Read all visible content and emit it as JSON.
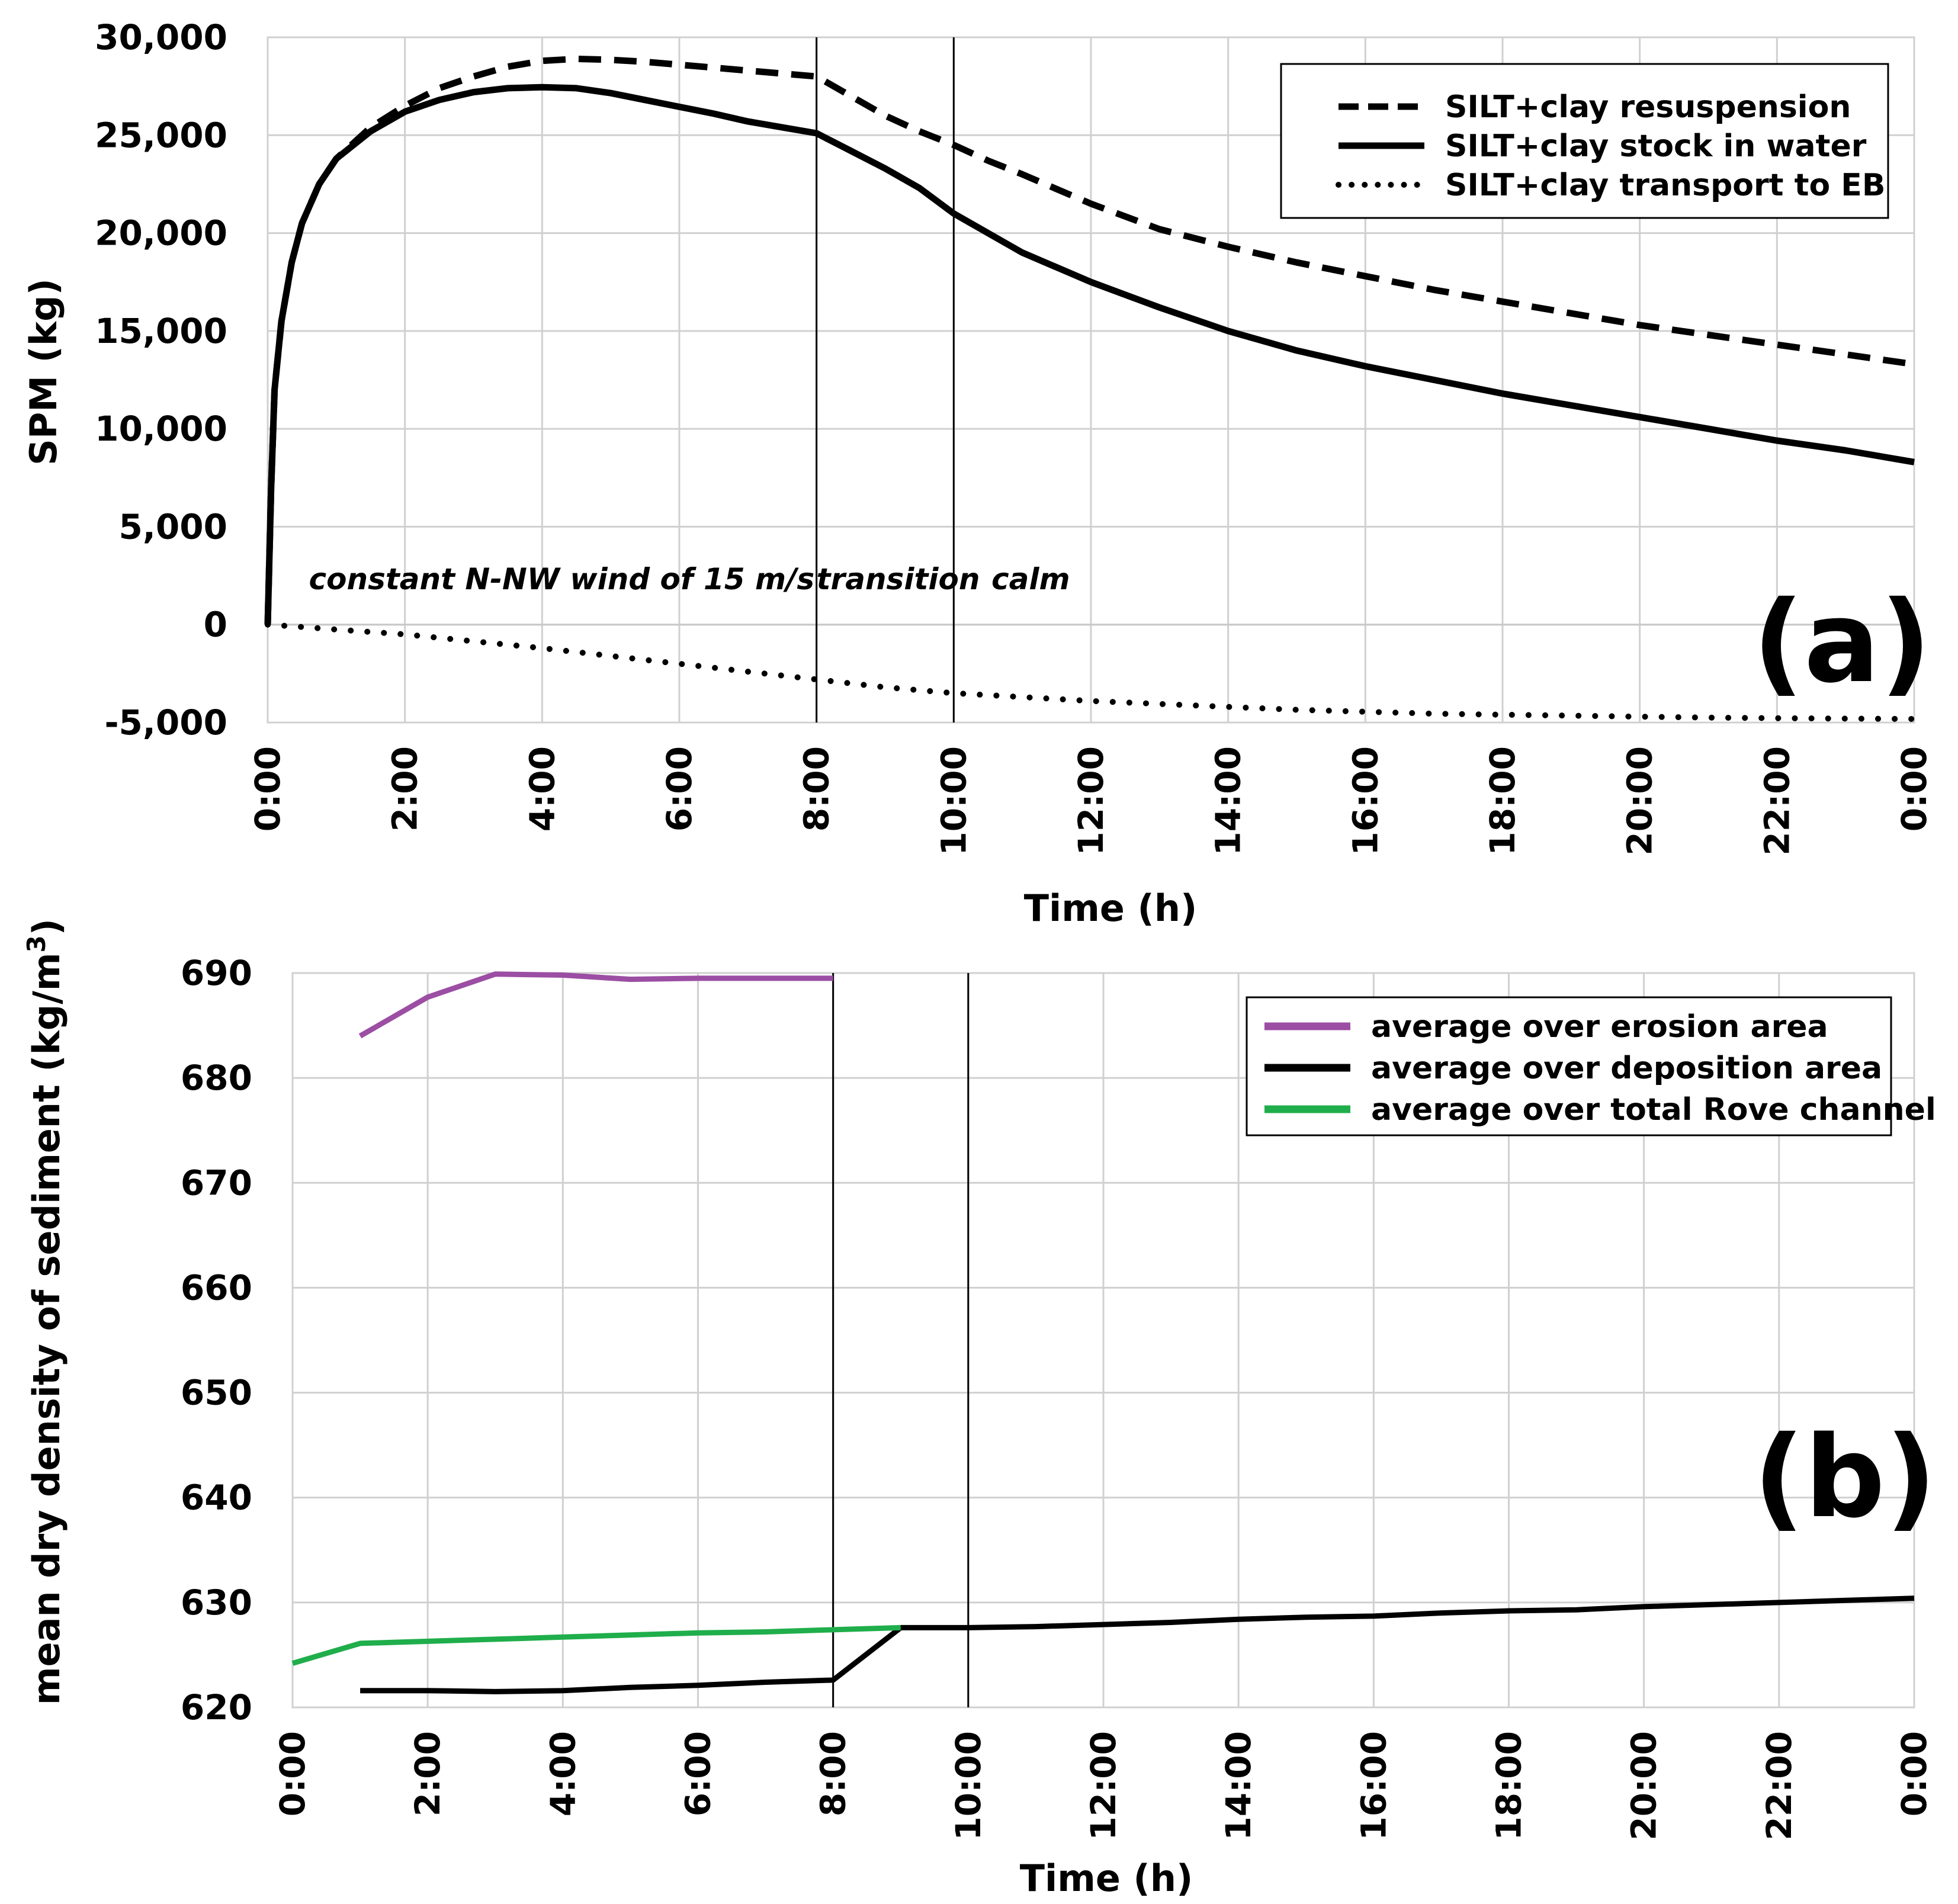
{
  "chart_data": [
    {
      "type": "line",
      "panel_label": "(a)",
      "xlabel": "Time (h)",
      "ylabel": "SPM (kg)",
      "ylim": [
        -5000,
        30000
      ],
      "yticks": [
        30000,
        25000,
        20000,
        15000,
        10000,
        5000,
        0,
        -5000
      ],
      "ytick_labels": [
        "30,000",
        "25,000",
        "20,000",
        "15,000",
        "10,000",
        "5,000",
        "0",
        "-5,000"
      ],
      "xlim": [
        0,
        24
      ],
      "xticks": [
        0,
        2,
        4,
        6,
        8,
        10,
        12,
        14,
        16,
        18,
        20,
        22,
        24
      ],
      "xtick_labels": [
        "0:00",
        "2:00",
        "4:00",
        "6:00",
        "8:00",
        "10:00",
        "12:00",
        "14:00",
        "16:00",
        "18:00",
        "20:00",
        "22:00",
        "0:00"
      ],
      "grid": true,
      "vlines": [
        8,
        10
      ],
      "annotations": [
        {
          "text": "constant N-NW wind of 15 m/s",
          "x": 0.6,
          "y": 1800
        },
        {
          "text": "transition",
          "x": 8.0,
          "y": 1800
        },
        {
          "text": "calm",
          "x": 10.55,
          "y": 1800
        }
      ],
      "legend": {
        "position": "top-right"
      },
      "series": [
        {
          "name": "SILT+clay resuspension",
          "style": "dashed",
          "color": "#000000",
          "x": [
            0,
            0.05,
            0.1,
            0.2,
            0.35,
            0.5,
            0.75,
            1,
            1.5,
            2,
            2.5,
            3,
            3.5,
            4,
            4.5,
            5,
            5.5,
            6,
            6.5,
            7,
            7.5,
            8,
            8.5,
            9,
            9.5,
            10,
            10.5,
            11,
            12,
            13,
            14,
            15,
            16,
            17,
            18,
            19,
            20,
            21,
            22,
            23,
            24
          ],
          "y": [
            0,
            7000,
            12000,
            15500,
            18500,
            20500,
            22500,
            23800,
            25400,
            26500,
            27400,
            28000,
            28500,
            28800,
            28900,
            28850,
            28750,
            28600,
            28450,
            28300,
            28150,
            28000,
            27000,
            26000,
            25200,
            24500,
            23700,
            23000,
            21500,
            20200,
            19300,
            18500,
            17800,
            17100,
            16500,
            15900,
            15300,
            14800,
            14300,
            13800,
            13300
          ]
        },
        {
          "name": "SILT+clay stock in water",
          "style": "solid",
          "color": "#000000",
          "x": [
            0,
            0.05,
            0.1,
            0.2,
            0.35,
            0.5,
            0.75,
            1,
            1.5,
            2,
            2.5,
            3,
            3.5,
            4,
            4.5,
            5,
            5.5,
            6,
            6.5,
            7,
            7.5,
            8,
            8.5,
            9,
            9.5,
            10,
            10.5,
            11,
            12,
            13,
            14,
            15,
            16,
            17,
            18,
            19,
            20,
            21,
            22,
            23,
            24
          ],
          "y": [
            0,
            7000,
            12000,
            15500,
            18500,
            20500,
            22500,
            23800,
            25200,
            26200,
            26800,
            27200,
            27400,
            27450,
            27400,
            27150,
            26800,
            26450,
            26100,
            25700,
            25400,
            25100,
            24200,
            23300,
            22300,
            21000,
            20000,
            19000,
            17500,
            16200,
            15000,
            14000,
            13200,
            12500,
            11800,
            11200,
            10600,
            10000,
            9400,
            8900,
            8300
          ]
        },
        {
          "name": "SILT+clay transport to EB",
          "style": "dotted",
          "color": "#000000",
          "x": [
            0,
            0.5,
            1,
            2,
            3,
            4,
            5,
            6,
            7,
            8,
            9,
            10,
            11,
            12,
            13,
            14,
            15,
            16,
            17,
            18,
            19,
            20,
            21,
            22,
            23,
            24
          ],
          "y": [
            0,
            -120,
            -250,
            -500,
            -850,
            -1200,
            -1600,
            -2000,
            -2400,
            -2800,
            -3200,
            -3500,
            -3700,
            -3900,
            -4050,
            -4200,
            -4350,
            -4450,
            -4550,
            -4600,
            -4650,
            -4700,
            -4750,
            -4780,
            -4800,
            -4820
          ]
        }
      ]
    },
    {
      "type": "line",
      "panel_label": "(b)",
      "xlabel": "Time (h)",
      "ylabel": "mean dry density of sediment (kg/m",
      "ylabel_superscript": "3",
      "ylabel_close": ")",
      "ylim": [
        620,
        690
      ],
      "yticks": [
        690,
        680,
        670,
        660,
        650,
        640,
        630,
        620
      ],
      "ytick_labels": [
        "690",
        "680",
        "670",
        "660",
        "650",
        "640",
        "630",
        "620"
      ],
      "xlim": [
        0,
        24
      ],
      "xticks": [
        0,
        2,
        4,
        6,
        8,
        10,
        12,
        14,
        16,
        18,
        20,
        22,
        24
      ],
      "xtick_labels": [
        "0:00",
        "2:00",
        "4:00",
        "6:00",
        "8:00",
        "10:00",
        "12:00",
        "14:00",
        "16:00",
        "18:00",
        "20:00",
        "22:00",
        "0:00"
      ],
      "grid": true,
      "vlines": [
        8,
        10
      ],
      "legend": {
        "position": "top-right"
      },
      "series": [
        {
          "name": "average over erosion area",
          "style": "solid",
          "color": "#9b4ea3",
          "x": [
            1,
            2,
            3,
            4,
            5,
            6,
            7,
            8
          ],
          "y": [
            684,
            687.7,
            689.9,
            689.8,
            689.4,
            689.5,
            689.5,
            689.5
          ]
        },
        {
          "name": "average over deposition area",
          "style": "solid",
          "color": "#000000",
          "x": [
            1,
            2,
            3,
            4,
            5,
            6,
            7,
            8,
            9,
            10,
            11,
            12,
            13,
            14,
            15,
            16,
            17,
            18,
            19,
            20,
            21,
            22,
            23,
            24
          ],
          "y": [
            621.6,
            621.6,
            621.5,
            621.6,
            621.9,
            622.1,
            622.4,
            622.6,
            627.6,
            627.6,
            627.7,
            627.9,
            628.1,
            628.4,
            628.6,
            628.7,
            629.0,
            629.2,
            629.3,
            629.6,
            629.8,
            630.0,
            630.2,
            630.4
          ]
        },
        {
          "name": "average over total Rove channel",
          "style": "solid",
          "color": "#1fae4b",
          "x": [
            0,
            1,
            2,
            3,
            4,
            5,
            6,
            7,
            8,
            9
          ],
          "y": [
            624.2,
            626.1,
            626.3,
            626.5,
            626.7,
            626.9,
            627.1,
            627.2,
            627.4,
            627.6
          ]
        }
      ]
    }
  ]
}
